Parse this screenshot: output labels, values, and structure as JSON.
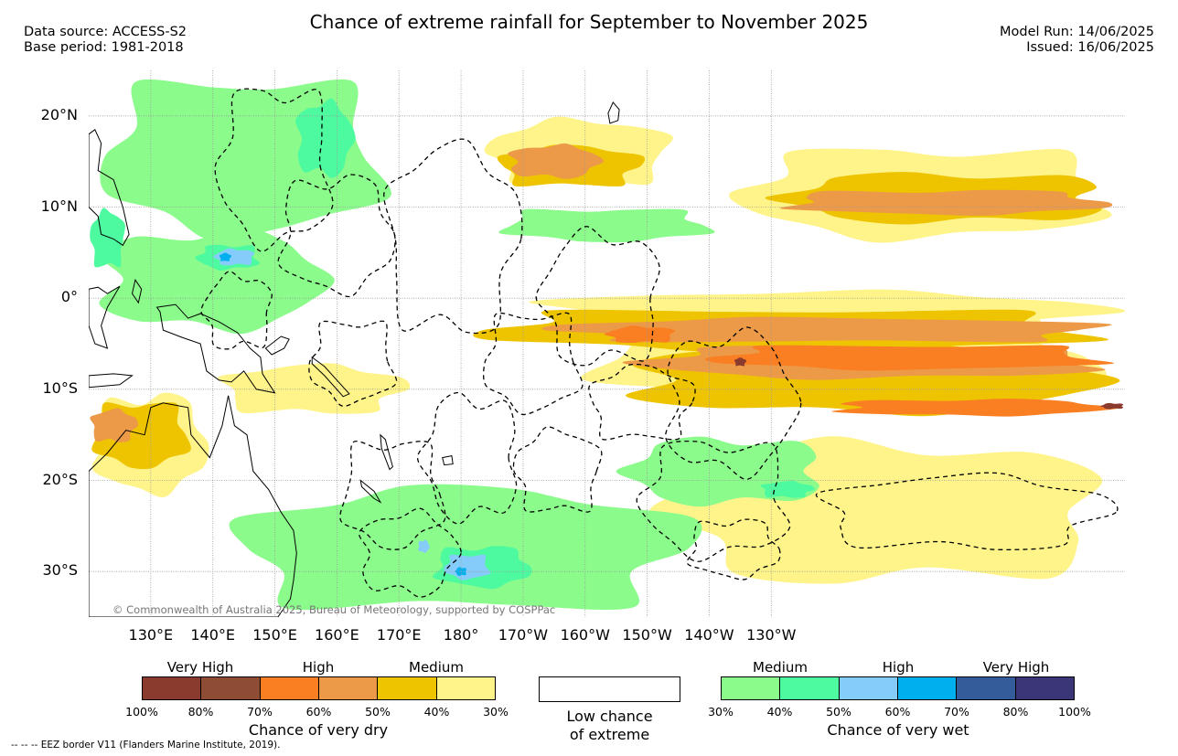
{
  "title": "Chance of extreme rainfall for September to November 2025",
  "source": {
    "data_source": "Data source: ACCESS-S2",
    "base_period": "Base period: 1981-2018"
  },
  "model": {
    "model_run": "Model Run: 14/06/2025",
    "issued": "Issued: 16/06/2025"
  },
  "copyright": "© Commonwealth of Australia 2025, Bureau of Meteorology, supported by COSPPac",
  "map": {
    "lon_range": [
      120,
      287
    ],
    "lat_range": [
      -35,
      25
    ],
    "lat_labels": [
      {
        "lat": 20,
        "label": "20°N"
      },
      {
        "lat": 10,
        "label": "10°N"
      },
      {
        "lat": 0,
        "label": "0°"
      },
      {
        "lat": -10,
        "label": "10°S"
      },
      {
        "lat": -20,
        "label": "20°S"
      },
      {
        "lat": -30,
        "label": "30°S"
      }
    ],
    "lon_labels": [
      {
        "lon": 130,
        "label": "130°E"
      },
      {
        "lon": 140,
        "label": "140°E"
      },
      {
        "lon": 150,
        "label": "150°E"
      },
      {
        "lon": 160,
        "label": "160°E"
      },
      {
        "lon": 170,
        "label": "170°E"
      },
      {
        "lon": 180,
        "label": "180°"
      },
      {
        "lon": 190,
        "label": "170°W"
      },
      {
        "lon": 200,
        "label": "160°W"
      },
      {
        "lon": 210,
        "label": "150°W"
      },
      {
        "lon": 220,
        "label": "140°W"
      },
      {
        "lon": 230,
        "label": "130°W"
      }
    ],
    "dry_regions": [
      {
        "level": 1,
        "lon": [
          197,
          287
        ],
        "lat": [
          -12,
          -1
        ]
      },
      {
        "level": 1,
        "lon": [
          188,
          287
        ],
        "lat": [
          -4,
          1
        ]
      },
      {
        "level": 1,
        "lon": [
          183,
          215
        ],
        "lat": [
          12,
          20
        ]
      },
      {
        "level": 1,
        "lon": [
          222,
          287
        ],
        "lat": [
          6,
          17
        ]
      },
      {
        "level": 1,
        "lon": [
          120,
          140
        ],
        "lat": [
          -22,
          -10
        ]
      },
      {
        "level": 1,
        "lon": [
          140,
          172
        ],
        "lat": [
          -13,
          -7
        ]
      },
      {
        "level": 1,
        "lon": [
          210,
          287
        ],
        "lat": [
          -32,
          -15
        ]
      },
      {
        "level": 2,
        "lon": [
          178,
          287
        ],
        "lat": [
          -6,
          -1
        ]
      },
      {
        "level": 2,
        "lon": [
          203,
          287
        ],
        "lat": [
          -13,
          -5
        ]
      },
      {
        "level": 2,
        "lon": [
          185,
          210
        ],
        "lat": [
          12,
          17
        ]
      },
      {
        "level": 2,
        "lon": [
          229,
          287
        ],
        "lat": [
          8,
          14
        ]
      },
      {
        "level": 2,
        "lon": [
          120,
          137
        ],
        "lat": [
          -19,
          -11
        ]
      },
      {
        "level": 3,
        "lon": [
          187,
          203
        ],
        "lat": [
          13,
          17
        ]
      },
      {
        "level": 3,
        "lon": [
          190,
          287
        ],
        "lat": [
          -5,
          -2
        ]
      },
      {
        "level": 3,
        "lon": [
          205,
          287
        ],
        "lat": [
          -9,
          -5
        ]
      },
      {
        "level": 3,
        "lon": [
          230,
          287
        ],
        "lat": [
          9,
          12
        ]
      },
      {
        "level": 3,
        "lon": [
          120,
          128
        ],
        "lat": [
          -16,
          -12
        ]
      },
      {
        "level": 4,
        "lon": [
          203,
          215
        ],
        "lat": [
          -5,
          -3
        ]
      },
      {
        "level": 4,
        "lon": [
          217,
          287
        ],
        "lat": [
          -8,
          -5
        ]
      },
      {
        "level": 4,
        "lon": [
          238,
          287
        ],
        "lat": [
          -13,
          -11
        ]
      },
      {
        "level": 6,
        "lon": [
          224,
          226
        ],
        "lat": [
          -7.5,
          -6.5
        ]
      },
      {
        "level": 6,
        "lon": [
          283,
          287
        ],
        "lat": [
          -12.2,
          -11.5
        ]
      }
    ],
    "wet_regions": [
      {
        "level": 1,
        "lon": [
          120,
          170
        ],
        "lat": [
          6,
          25
        ]
      },
      {
        "level": 1,
        "lon": [
          120,
          160
        ],
        "lat": [
          -4,
          8
        ]
      },
      {
        "level": 1,
        "lon": [
          140,
          220
        ],
        "lat": [
          -35,
          -20
        ]
      },
      {
        "level": 1,
        "lon": [
          205,
          240
        ],
        "lat": [
          -23,
          -15
        ]
      },
      {
        "level": 1,
        "lon": [
          185,
          222
        ],
        "lat": [
          6,
          10
        ]
      },
      {
        "level": 2,
        "lon": [
          153,
          163
        ],
        "lat": [
          13,
          22
        ]
      },
      {
        "level": 2,
        "lon": [
          120,
          126
        ],
        "lat": [
          3,
          10
        ]
      },
      {
        "level": 2,
        "lon": [
          137,
          148
        ],
        "lat": [
          3,
          6
        ]
      },
      {
        "level": 2,
        "lon": [
          175,
          192
        ],
        "lat": [
          -32,
          -27
        ]
      },
      {
        "level": 2,
        "lon": [
          228,
          237
        ],
        "lat": [
          -22,
          -20
        ]
      },
      {
        "level": 3,
        "lon": [
          140,
          147
        ],
        "lat": [
          3.5,
          5.5
        ]
      },
      {
        "level": 3,
        "lon": [
          177,
          185
        ],
        "lat": [
          -31,
          -28
        ]
      },
      {
        "level": 3,
        "lon": [
          173,
          175
        ],
        "lat": [
          -28,
          -26.5
        ]
      },
      {
        "level": 4,
        "lon": [
          141,
          143
        ],
        "lat": [
          4,
          5
        ]
      },
      {
        "level": 4,
        "lon": [
          179,
          181
        ],
        "lat": [
          -30.5,
          -29.5
        ]
      }
    ],
    "eez_outlines": [
      {
        "lon": [
          140,
          160
        ],
        "lat": [
          5,
          24
        ]
      },
      {
        "lon": [
          150,
          170
        ],
        "lat": [
          0,
          14
        ]
      },
      {
        "lon": [
          167,
          190
        ],
        "lat": [
          -5,
          18
        ]
      },
      {
        "lon": [
          192,
          213
        ],
        "lat": [
          -8,
          8
        ]
      },
      {
        "lon": [
          183,
          200
        ],
        "lat": [
          -13,
          -1
        ]
      },
      {
        "lon": [
          212,
          235
        ],
        "lat": [
          -20,
          -3
        ]
      },
      {
        "lon": [
          200,
          218
        ],
        "lat": [
          -16,
          -7
        ]
      },
      {
        "lon": [
          173,
          190
        ],
        "lat": [
          -25,
          -10
        ]
      },
      {
        "lon": [
          160,
          178
        ],
        "lat": [
          -28,
          -15
        ]
      },
      {
        "lon": [
          163,
          180
        ],
        "lat": [
          -33,
          -23
        ]
      },
      {
        "lon": [
          188,
          203
        ],
        "lat": [
          -24,
          -14
        ]
      },
      {
        "lon": [
          208,
          234
        ],
        "lat": [
          -29,
          -15
        ]
      },
      {
        "lon": [
          216,
          232
        ],
        "lat": [
          -31,
          -24
        ]
      },
      {
        "lon": [
          236,
          286
        ],
        "lat": [
          -28,
          -19
        ]
      },
      {
        "lon": [
          138,
          150
        ],
        "lat": [
          -6,
          3
        ]
      },
      {
        "lon": [
          155,
          170
        ],
        "lat": [
          -12,
          -2
        ]
      }
    ],
    "land": [
      {
        "name": "australia",
        "points": [
          [
            120,
            -19
          ],
          [
            123,
            -17
          ],
          [
            126,
            -14.5
          ],
          [
            129,
            -15
          ],
          [
            130,
            -12
          ],
          [
            132,
            -11.5
          ],
          [
            136,
            -12
          ],
          [
            136.5,
            -15
          ],
          [
            139.5,
            -17.5
          ],
          [
            141.5,
            -14
          ],
          [
            142.5,
            -10.7
          ],
          [
            143.5,
            -14
          ],
          [
            145.5,
            -15
          ],
          [
            146.5,
            -19
          ],
          [
            149,
            -21
          ],
          [
            151,
            -23.5
          ],
          [
            153,
            -25.5
          ],
          [
            153.5,
            -28
          ],
          [
            153,
            -31
          ],
          [
            152.5,
            -33
          ],
          [
            151,
            -34.5
          ],
          [
            150.5,
            -35
          ],
          [
            120,
            -35
          ]
        ]
      },
      {
        "name": "new-guinea",
        "points": [
          [
            131,
            -1
          ],
          [
            134,
            -0.7
          ],
          [
            136,
            -2.2
          ],
          [
            138,
            -1.7
          ],
          [
            141,
            -2.6
          ],
          [
            144,
            -3.8
          ],
          [
            146,
            -5.5
          ],
          [
            147.7,
            -6.5
          ],
          [
            148,
            -8.3
          ],
          [
            150,
            -10.4
          ],
          [
            147,
            -10
          ],
          [
            145,
            -8
          ],
          [
            143,
            -9.2
          ],
          [
            141,
            -9
          ],
          [
            139,
            -8
          ],
          [
            138,
            -5
          ],
          [
            135,
            -4.3
          ],
          [
            132,
            -3.5
          ],
          [
            131.5,
            -1.5
          ]
        ]
      },
      {
        "name": "new-britain",
        "points": [
          [
            148.5,
            -5.5
          ],
          [
            151,
            -4.2
          ],
          [
            152.3,
            -4.5
          ],
          [
            151.5,
            -5.5
          ],
          [
            149.5,
            -6.2
          ]
        ]
      },
      {
        "name": "philippines",
        "points": [
          [
            120,
            18
          ],
          [
            121,
            18.5
          ],
          [
            122,
            17
          ],
          [
            121.5,
            14
          ],
          [
            124,
            13
          ],
          [
            125.5,
            10
          ],
          [
            126.5,
            7
          ],
          [
            125.5,
            5.8
          ],
          [
            124,
            6.5
          ],
          [
            122,
            7
          ],
          [
            121.5,
            9
          ],
          [
            120,
            10
          ]
        ]
      },
      {
        "name": "borneo-sulawesi",
        "points": [
          [
            120,
            1
          ],
          [
            121.5,
            1.2
          ],
          [
            123,
            0.5
          ],
          [
            125,
            1.3
          ],
          [
            123,
            -1
          ],
          [
            122,
            -3
          ],
          [
            123,
            -5.5
          ],
          [
            121,
            -5
          ],
          [
            120,
            -3
          ]
        ]
      },
      {
        "name": "halmahera",
        "points": [
          [
            127.5,
            2
          ],
          [
            128.5,
            1
          ],
          [
            128,
            -0.5
          ],
          [
            127,
            0.5
          ]
        ]
      },
      {
        "name": "timor-islands",
        "points": [
          [
            120,
            -8.5
          ],
          [
            124,
            -8.3
          ],
          [
            127,
            -8.5
          ],
          [
            125,
            -9.5
          ],
          [
            120,
            -9.8
          ]
        ]
      },
      {
        "name": "solomons",
        "points": [
          [
            156,
            -6.5
          ],
          [
            158,
            -7.5
          ],
          [
            160,
            -9
          ],
          [
            162,
            -10.5
          ],
          [
            161,
            -10.8
          ],
          [
            158,
            -8.5
          ],
          [
            156,
            -7.2
          ]
        ]
      },
      {
        "name": "new-caledonia",
        "points": [
          [
            163.8,
            -20
          ],
          [
            166,
            -21.2
          ],
          [
            167,
            -22.4
          ],
          [
            166,
            -22
          ],
          [
            164,
            -20.7
          ]
        ]
      },
      {
        "name": "vanuatu",
        "points": [
          [
            167,
            -15
          ],
          [
            167.8,
            -15.5
          ],
          [
            168.3,
            -16.8
          ],
          [
            169,
            -18.5
          ],
          [
            168.5,
            -18.8
          ],
          [
            167.2,
            -16.5
          ]
        ]
      },
      {
        "name": "fiji",
        "points": [
          [
            177,
            -17.5
          ],
          [
            178.5,
            -17.3
          ],
          [
            178.7,
            -18.2
          ],
          [
            177.3,
            -18.3
          ]
        ]
      },
      {
        "name": "hawaii",
        "points": [
          [
            204.5,
            21.5
          ],
          [
            205.5,
            20.7
          ],
          [
            205.3,
            19.5
          ],
          [
            204,
            19.2
          ],
          [
            203.7,
            20.3
          ]
        ]
      }
    ]
  },
  "legend": {
    "dry": {
      "categories": [
        "Very High",
        "High",
        "Medium"
      ],
      "colors": [
        "#8a3b2d",
        "#8f4c35",
        "#fa7e22",
        "#ec9a48",
        "#eec400",
        "#fff48a"
      ],
      "ticks": [
        "100%",
        "80%",
        "70%",
        "60%",
        "50%",
        "40%",
        "30%"
      ],
      "title": "Chance of very dry"
    },
    "low": {
      "line1": "Low chance",
      "line2": "of extreme"
    },
    "wet": {
      "categories": [
        "Medium",
        "High",
        "Very High"
      ],
      "colors": [
        "#8bfb8b",
        "#4efaa0",
        "#86ccfa",
        "#00b0ee",
        "#345c9b",
        "#3a3677"
      ],
      "ticks": [
        "30%",
        "40%",
        "50%",
        "60%",
        "70%",
        "80%",
        "100%"
      ],
      "title": "Chance of very wet"
    }
  },
  "eez_note": "-- -- -- EEZ border V11 (Flanders Marine Institute, 2019)."
}
